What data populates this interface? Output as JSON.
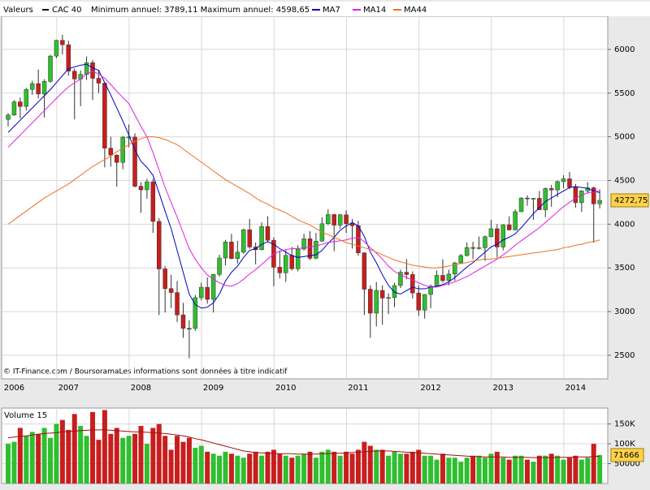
{
  "chart_data": {
    "type": "candlestick",
    "header_label": "Valeurs",
    "name": "CAC 40",
    "name_color": "#000000",
    "range_note": "Minimum annuel: 3789,11 Maximum annuel: 4598,65",
    "footer": "© IT-Finance.com / BoursoramaLes informations sont données à titre indicatif",
    "up_color": "#2fbf2f",
    "down_color": "#c81e1e",
    "grid": true,
    "categories": [
      null,
      "2006",
      null,
      null,
      null,
      null,
      null,
      null,
      null,
      null,
      "2007",
      null,
      null,
      null,
      null,
      null,
      null,
      null,
      null,
      null,
      null,
      null,
      "2008",
      null,
      null,
      null,
      null,
      null,
      null,
      null,
      null,
      null,
      null,
      null,
      "2009",
      null,
      null,
      null,
      null,
      null,
      null,
      null,
      null,
      null,
      null,
      null,
      "2010",
      null,
      null,
      null,
      null,
      null,
      null,
      null,
      null,
      null,
      null,
      null,
      "2011",
      null,
      null,
      null,
      null,
      null,
      null,
      null,
      null,
      null,
      null,
      null,
      "2012",
      null,
      null,
      null,
      null,
      null,
      null,
      null,
      null,
      null,
      null,
      null,
      "2013",
      null,
      null,
      null,
      null,
      null,
      null,
      null,
      null,
      null,
      null,
      null,
      "2014",
      null,
      null,
      null,
      null
    ],
    "open": [
      5200,
      5250,
      5400,
      5348,
      5542,
      5609,
      5490,
      5634,
      5924,
      6104,
      6054,
      5751,
      5662,
      5715,
      5848,
      5670,
      5614,
      4870,
      4790,
      4707,
      4996,
      4997,
      4434,
      4393,
      4485,
      4032,
      3488,
      3263,
      3218,
      2962,
      2808,
      2807,
      3159,
      3278,
      3140,
      3426,
      3613,
      3796,
      3607,
      3680,
      3936,
      3739,
      3708,
      3974,
      3816,
      3508,
      3443,
      3643,
      3490,
      3715,
      3833,
      3610,
      3805,
      4005,
      4110,
      3989,
      4107,
      4006,
      3982,
      3672,
      3256,
      2982,
      3242,
      3155,
      3160,
      3298,
      3450,
      3424,
      3213,
      3017,
      3196,
      3291,
      3414,
      3355,
      3429,
      3557,
      3641,
      3733,
      3723,
      3731,
      3857,
      3948,
      3739,
      3993,
      3934,
      4143,
      4299,
      4296,
      4296,
      4165,
      4408,
      4392,
      4487,
      4519,
      4422,
      4246,
      4381,
      4416,
      4233
    ],
    "high": [
      5270,
      5420,
      5450,
      5560,
      5640,
      5770,
      5660,
      5940,
      6110,
      6168,
      6100,
      5780,
      5760,
      5920,
      5880,
      5760,
      5620,
      5000,
      4800,
      5010,
      5140,
      5040,
      4480,
      4520,
      4520,
      4070,
      3520,
      3420,
      3350,
      3100,
      2900,
      3190,
      3330,
      3390,
      3430,
      3650,
      3820,
      3890,
      3810,
      3950,
      4060,
      3790,
      4020,
      4090,
      3850,
      3700,
      3700,
      3740,
      3760,
      3890,
      3920,
      3900,
      4080,
      4170,
      4120,
      4120,
      4160,
      4060,
      4040,
      3680,
      3300,
      3340,
      3300,
      3210,
      3330,
      3480,
      3600,
      3460,
      3300,
      3200,
      3310,
      3470,
      3600,
      3480,
      3570,
      3660,
      3790,
      3800,
      3860,
      3870,
      4050,
      4000,
      4000,
      4090,
      4170,
      4310,
      4330,
      4300,
      4380,
      4420,
      4450,
      4500,
      4560,
      4599,
      4460,
      4390,
      4480,
      4430,
      4400
    ],
    "low": [
      5120,
      5240,
      5210,
      5300,
      5480,
      5440,
      5220,
      5620,
      5900,
      5940,
      5700,
      5200,
      5350,
      5650,
      5420,
      5500,
      4650,
      4660,
      4430,
      4630,
      4880,
      4420,
      4130,
      4290,
      3900,
      2960,
      2990,
      3040,
      2880,
      2700,
      2465,
      2780,
      3130,
      3090,
      2990,
      3400,
      3530,
      3600,
      3550,
      3660,
      3720,
      3540,
      3700,
      3800,
      3290,
      3380,
      3340,
      3470,
      3460,
      3700,
      3590,
      3600,
      3800,
      3990,
      3690,
      3950,
      3900,
      3720,
      3640,
      2960,
      2700,
      2830,
      2850,
      2970,
      3050,
      3270,
      3370,
      3150,
      2950,
      2920,
      3040,
      3290,
      3330,
      3300,
      3350,
      3550,
      3630,
      3600,
      3710,
      3580,
      3850,
      3620,
      3700,
      3930,
      3930,
      4140,
      4210,
      4050,
      4160,
      4080,
      4200,
      4310,
      4410,
      4400,
      4190,
      4140,
      4350,
      3789,
      4180
    ],
    "close": [
      5250,
      5400,
      5348,
      5542,
      5609,
      5490,
      5634,
      5924,
      6104,
      6054,
      5751,
      5662,
      5715,
      5848,
      5670,
      5614,
      4870,
      4790,
      4707,
      4996,
      4997,
      4434,
      4393,
      4485,
      4032,
      3488,
      3263,
      3218,
      2962,
      2808,
      2807,
      3159,
      3278,
      3140,
      3426,
      3613,
      3796,
      3607,
      3680,
      3936,
      3739,
      3708,
      3974,
      3816,
      3508,
      3443,
      3643,
      3490,
      3715,
      3833,
      3610,
      3805,
      4005,
      4110,
      3989,
      4107,
      4006,
      3982,
      3672,
      3256,
      2982,
      3242,
      3155,
      3160,
      3298,
      3450,
      3424,
      3213,
      3017,
      3196,
      3291,
      3414,
      3355,
      3429,
      3557,
      3641,
      3733,
      3723,
      3731,
      3857,
      3948,
      3739,
      3993,
      3934,
      4143,
      4299,
      4296,
      4296,
      4165,
      4408,
      4392,
      4487,
      4519,
      4422,
      4246,
      4381,
      4416,
      4233,
      4272.75
    ],
    "last_label": "4272,75",
    "series": [
      {
        "name": "MA7",
        "color": "#0000c0",
        "values": [
          5050,
          5120,
          5190,
          5260,
          5330,
          5400,
          5470,
          5540,
          5620,
          5700,
          5780,
          5800,
          5820,
          5830,
          5790,
          5760,
          5620,
          5480,
          5330,
          5180,
          5020,
          4850,
          4720,
          4650,
          4560,
          4360,
          4150,
          3950,
          3700,
          3450,
          3200,
          3080,
          3040,
          3050,
          3100,
          3200,
          3350,
          3450,
          3520,
          3620,
          3700,
          3720,
          3770,
          3800,
          3770,
          3720,
          3680,
          3640,
          3620,
          3630,
          3640,
          3650,
          3700,
          3780,
          3850,
          3930,
          3980,
          4020,
          3980,
          3860,
          3680,
          3560,
          3420,
          3300,
          3220,
          3200,
          3240,
          3280,
          3260,
          3260,
          3280,
          3290,
          3310,
          3340,
          3390,
          3450,
          3510,
          3560,
          3620,
          3680,
          3740,
          3770,
          3820,
          3850,
          3890,
          3960,
          4040,
          4120,
          4190,
          4260,
          4300,
          4340,
          4380,
          4420,
          4430,
          4420,
          4410,
          4380,
          4360
        ]
      },
      {
        "name": "MA14",
        "color": "#e020e0",
        "values": [
          4880,
          4950,
          5020,
          5090,
          5160,
          5230,
          5300,
          5370,
          5440,
          5510,
          5570,
          5620,
          5660,
          5720,
          5750,
          5720,
          5670,
          5600,
          5520,
          5450,
          5380,
          5250,
          5120,
          5000,
          4820,
          4620,
          4420,
          4250,
          4080,
          3900,
          3720,
          3600,
          3500,
          3420,
          3370,
          3330,
          3300,
          3290,
          3320,
          3370,
          3430,
          3480,
          3540,
          3600,
          3660,
          3690,
          3710,
          3720,
          3720,
          3730,
          3740,
          3750,
          3770,
          3790,
          3800,
          3810,
          3820,
          3840,
          3850,
          3800,
          3730,
          3670,
          3600,
          3520,
          3460,
          3420,
          3390,
          3360,
          3330,
          3300,
          3280,
          3280,
          3300,
          3320,
          3340,
          3370,
          3400,
          3440,
          3480,
          3520,
          3560,
          3600,
          3650,
          3700,
          3760,
          3810,
          3860,
          3910,
          3960,
          4020,
          4080,
          4140,
          4200,
          4250,
          4300,
          4330,
          4360,
          4370,
          4380
        ]
      },
      {
        "name": "MA44",
        "color": "#f07020",
        "values": [
          4000,
          4050,
          4100,
          4150,
          4200,
          4250,
          4300,
          4340,
          4380,
          4420,
          4460,
          4510,
          4560,
          4610,
          4660,
          4700,
          4740,
          4780,
          4830,
          4870,
          4910,
          4950,
          4980,
          5000,
          5000,
          4990,
          4970,
          4940,
          4910,
          4860,
          4810,
          4760,
          4710,
          4660,
          4610,
          4560,
          4510,
          4470,
          4430,
          4390,
          4350,
          4300,
          4260,
          4230,
          4190,
          4160,
          4130,
          4090,
          4050,
          4020,
          3990,
          3950,
          3910,
          3880,
          3850,
          3820,
          3790,
          3770,
          3750,
          3730,
          3710,
          3680,
          3650,
          3620,
          3590,
          3570,
          3550,
          3530,
          3520,
          3510,
          3500,
          3500,
          3510,
          3520,
          3540,
          3550,
          3560,
          3580,
          3590,
          3600,
          3600,
          3610,
          3620,
          3630,
          3640,
          3650,
          3660,
          3670,
          3680,
          3690,
          3700,
          3710,
          3730,
          3740,
          3760,
          3770,
          3790,
          3800,
          3820
        ]
      }
    ],
    "ylim": [
      2230,
      6380
    ],
    "yticks": [
      2500,
      3000,
      3500,
      4000,
      4500,
      5000,
      5500,
      6000
    ],
    "volume": {
      "type": "bar",
      "title": "Volume 15",
      "values": [
        100000,
        105000,
        140000,
        120000,
        130000,
        125000,
        140000,
        115000,
        150000,
        160000,
        135000,
        175000,
        145000,
        120000,
        180000,
        110000,
        185000,
        125000,
        140000,
        115000,
        120000,
        125000,
        145000,
        100000,
        140000,
        150000,
        120000,
        85000,
        120000,
        105000,
        115000,
        90000,
        95000,
        80000,
        75000,
        70000,
        80000,
        75000,
        70000,
        65000,
        75000,
        80000,
        70000,
        80000,
        85000,
        75000,
        70000,
        65000,
        70000,
        75000,
        80000,
        65000,
        80000,
        85000,
        80000,
        70000,
        80000,
        75000,
        85000,
        105000,
        95000,
        85000,
        85000,
        70000,
        80000,
        75000,
        75000,
        80000,
        85000,
        70000,
        70000,
        60000,
        75000,
        65000,
        65000,
        55000,
        65000,
        70000,
        70000,
        65000,
        75000,
        80000,
        65000,
        60000,
        70000,
        70000,
        60000,
        55000,
        70000,
        70000,
        75000,
        70000,
        60000,
        65000,
        70000,
        60000,
        65000,
        100000,
        71666
      ],
      "last_label": "71666",
      "ma_color": "#a01010",
      "ma": [
        115000,
        117000,
        119000,
        120000,
        122000,
        124000,
        126000,
        127000,
        128000,
        130000,
        131000,
        132000,
        133000,
        134000,
        135000,
        135000,
        135000,
        134000,
        133000,
        132000,
        131000,
        130000,
        130000,
        129000,
        128000,
        127000,
        126000,
        124000,
        122000,
        120000,
        117000,
        113000,
        110000,
        106000,
        102000,
        98000,
        94000,
        90000,
        86000,
        82000,
        80000,
        78000,
        77000,
        76000,
        76000,
        75000,
        75000,
        75000,
        74000,
        74000,
        74000,
        74000,
        75000,
        75000,
        76000,
        76000,
        77000,
        78000,
        79000,
        80000,
        81000,
        82000,
        82000,
        82000,
        81000,
        80000,
        79000,
        78000,
        77000,
        76000,
        75000,
        74000,
        73000,
        72000,
        71000,
        70000,
        69000,
        68000,
        68000,
        67000,
        67000,
        67000,
        67000,
        66000,
        66000,
        66000,
        66000,
        65000,
        65000,
        65000,
        65000,
        66000,
        66000,
        66000,
        67000,
        67000,
        67000,
        68000,
        69000
      ],
      "ylim": [
        0,
        190000
      ],
      "yticks": [
        {
          "value": 50000,
          "label": "50000"
        },
        {
          "value": 100000,
          "label": "100K"
        },
        {
          "value": 150000,
          "label": "150K"
        }
      ]
    }
  }
}
